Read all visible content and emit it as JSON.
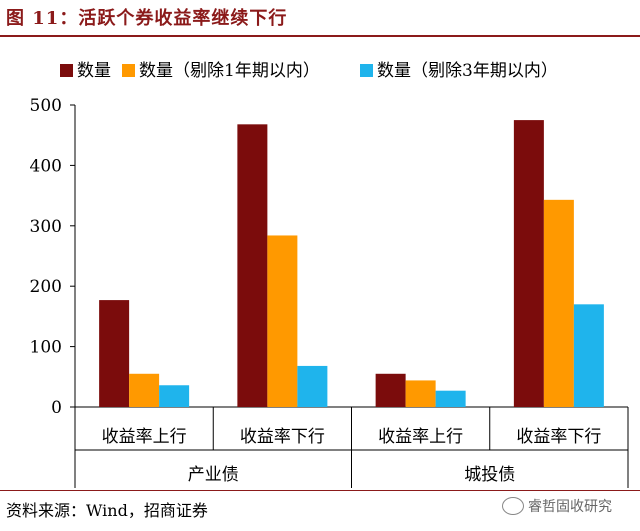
{
  "figure": {
    "title": "图 11：活跃个券收益率继续下行",
    "source": "资料来源：Wind，招商证券",
    "watermark": "睿哲固收研究"
  },
  "chart_data": {
    "type": "bar",
    "groups": [
      {
        "name": "产业债",
        "categories": [
          "收益率上行",
          "收益率下行"
        ]
      },
      {
        "name": "城投债",
        "categories": [
          "收益率上行",
          "收益率下行"
        ]
      }
    ],
    "categories": [
      "收益率上行",
      "收益率下行",
      "收益率上行",
      "收益率下行"
    ],
    "series": [
      {
        "name": "数量",
        "color": "#7b0c0c",
        "values": [
          177,
          468,
          55,
          475
        ]
      },
      {
        "name": "数量（剔除1年期以内）",
        "color": "#ff9900",
        "values": [
          55,
          284,
          44,
          343
        ]
      },
      {
        "name": "数量（剔除3年期以内）",
        "color": "#1fb4ec",
        "values": [
          36,
          68,
          27,
          170
        ]
      }
    ],
    "ylim": [
      0,
      500
    ],
    "yticks": [
      0,
      100,
      200,
      300,
      400,
      500
    ],
    "legend": "top",
    "grid": false
  }
}
